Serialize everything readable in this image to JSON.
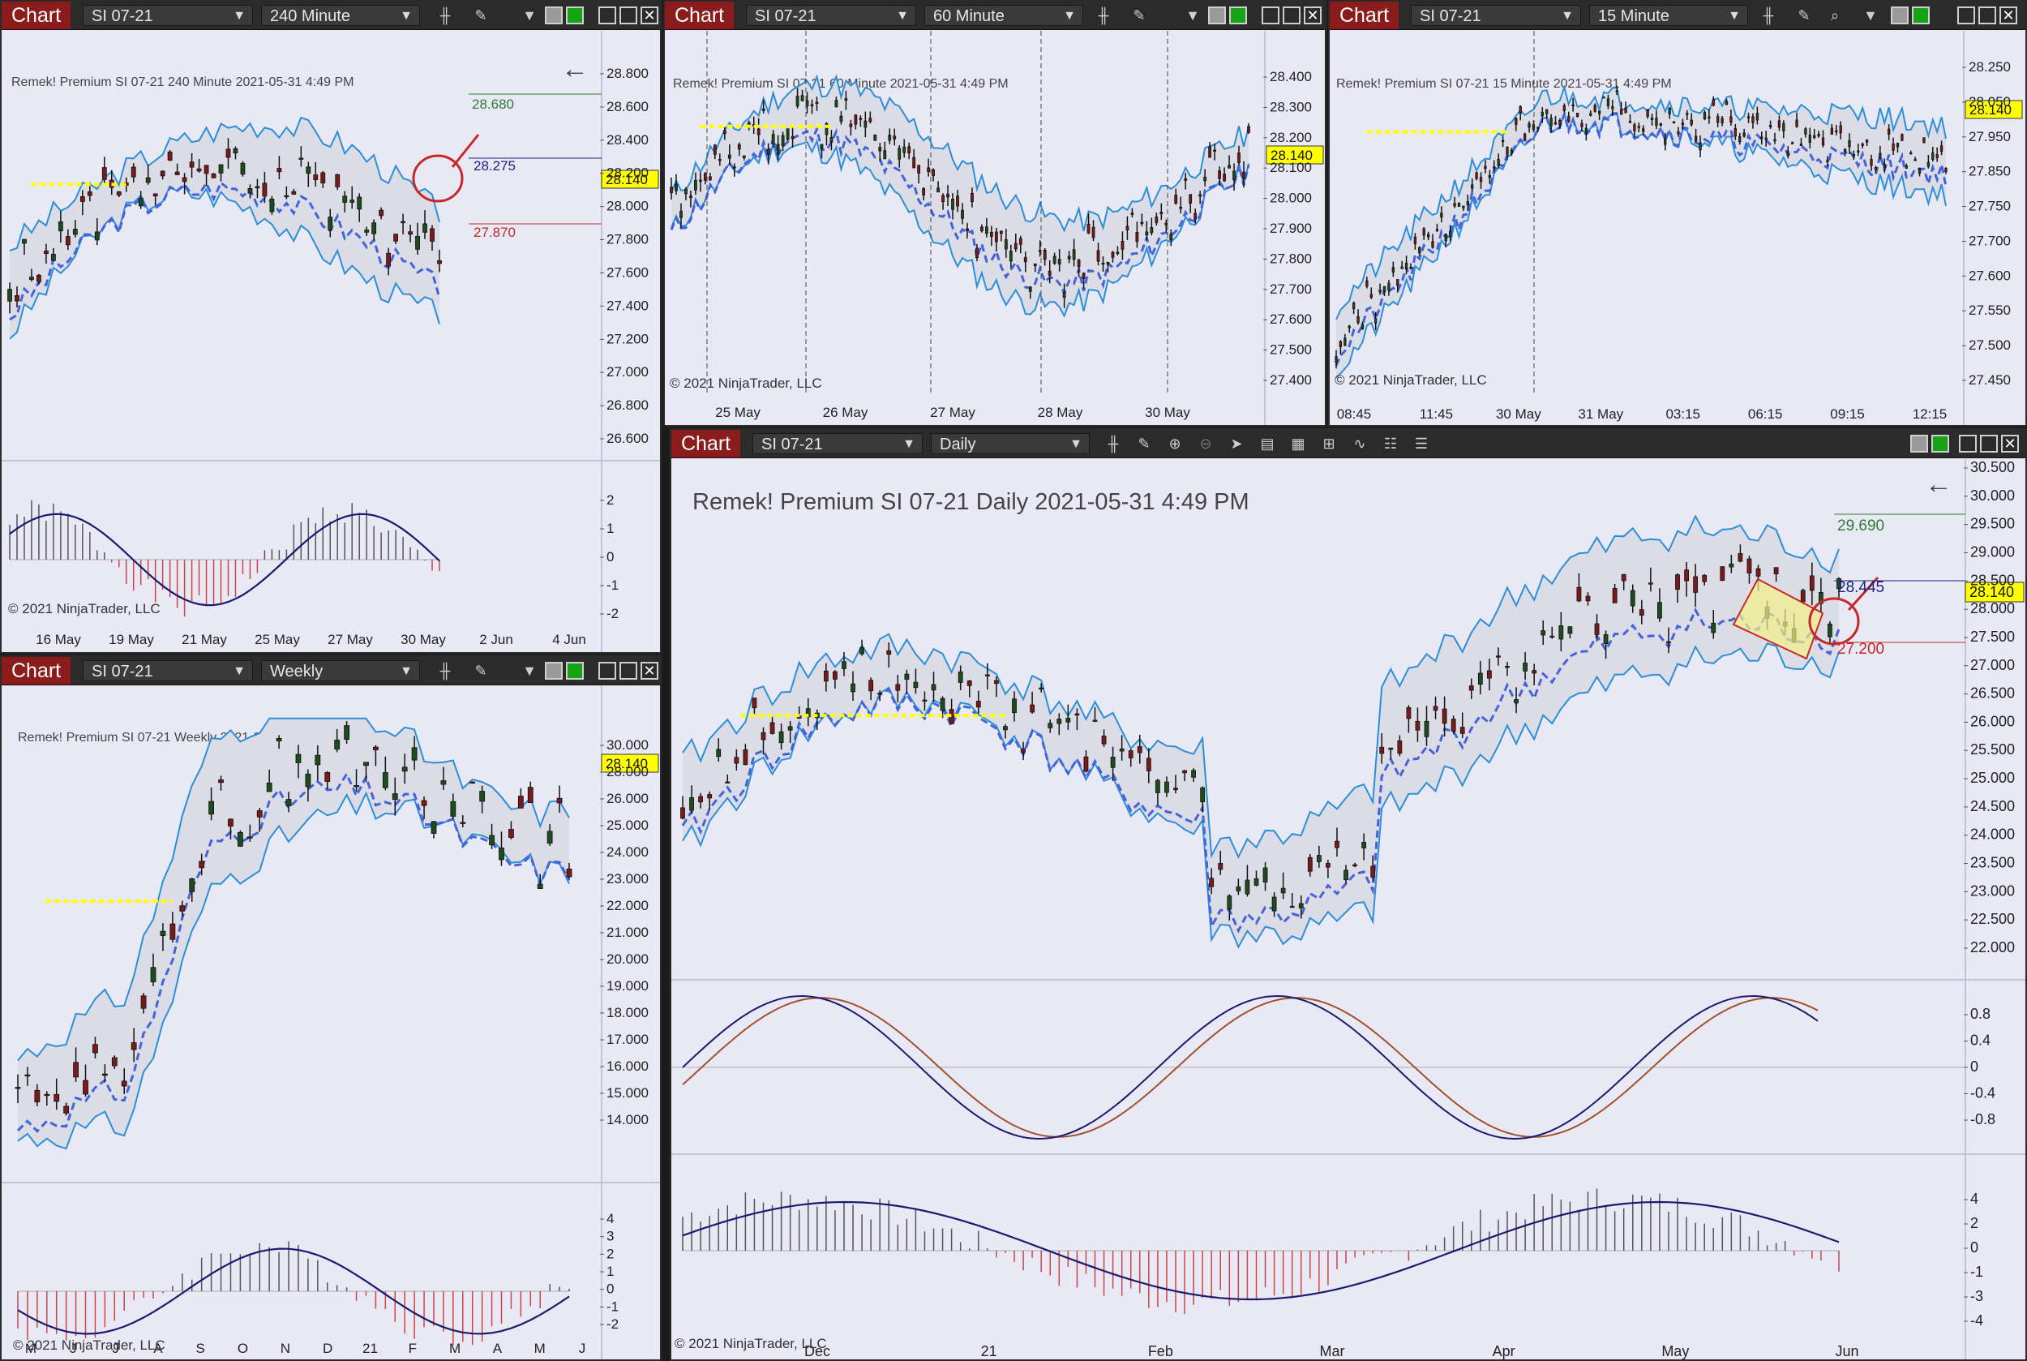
{
  "common": {
    "tab_label": "Chart",
    "instrument": "SI 07-21",
    "last_price": "28.140",
    "copyright": "© 2021 NinjaTrader, LLC",
    "header_prefix": "Remek!  Premium  SI 07-21",
    "timestamp": "2021-05-31 4:49 PM"
  },
  "colors": {
    "tab_bg": "#8a1c1c",
    "chart_bg": "#e9e9f6",
    "bull_candle": "#1d4d1d",
    "bear_candle": "#7a1a1a",
    "band": "#2b8fd8",
    "signal_yellow": "#ffff00",
    "signal_red": "#d01b1b",
    "signal_blue": "#4463d8",
    "price_tag": "#ffff00"
  },
  "win240": {
    "interval": "240 Minute",
    "header_interval": "240 Minute",
    "y_ticks": [
      "28.800",
      "28.600",
      "28.400",
      "28.200",
      "28.000",
      "27.800",
      "27.600",
      "27.400",
      "27.200",
      "27.000",
      "26.800",
      "26.600"
    ],
    "x_ticks": [
      "16 May",
      "19 May",
      "21 May",
      "25 May",
      "27 May",
      "30 May",
      "2 Jun",
      "4 Jun"
    ],
    "osc_ticks": [
      "2",
      "1",
      "0",
      "-1",
      "-2"
    ],
    "target_up": "28.680",
    "target_mid": "28.275",
    "target_down": "27.870",
    "back_icon": "arrow-left-icon"
  },
  "win60": {
    "interval": "60 Minute",
    "header_interval": "60 Minute",
    "y_ticks": [
      "28.400",
      "28.300",
      "28.200",
      "28.100",
      "28.000",
      "27.900",
      "27.800",
      "27.700",
      "27.600",
      "27.500",
      "27.400"
    ],
    "x_ticks": [
      "25 May",
      "26 May",
      "27 May",
      "28 May",
      "30 May"
    ]
  },
  "win15": {
    "interval": "15 Minute",
    "header_interval": "15 Minute",
    "y_ticks": [
      "28.250",
      "28.050",
      "27.950",
      "27.850",
      "27.750",
      "27.700",
      "27.600",
      "27.550",
      "27.500",
      "27.450"
    ],
    "x_ticks": [
      "08:45",
      "11:45",
      "30 May",
      "31 May",
      "03:15",
      "06:15",
      "09:15",
      "12:15"
    ]
  },
  "winWeekly": {
    "interval": "Weekly",
    "header_interval": "Weekly",
    "y_ticks": [
      "30.000",
      "28.000",
      "26.000",
      "25.000",
      "24.000",
      "23.000",
      "22.000",
      "21.000",
      "20.000",
      "19.000",
      "18.000",
      "17.000",
      "16.000",
      "15.000",
      "14.000"
    ],
    "x_ticks": [
      "M",
      "J",
      "J",
      "A",
      "S",
      "O",
      "N",
      "D",
      "21",
      "F",
      "M",
      "A",
      "M",
      "J"
    ],
    "osc_ticks": [
      "4",
      "3",
      "2",
      "1",
      "0",
      "-1",
      "-2"
    ]
  },
  "winDaily": {
    "interval": "Daily",
    "header_interval": "Daily",
    "y_ticks": [
      "30.500",
      "30.000",
      "29.500",
      "29.000",
      "28.500",
      "28.000",
      "27.500",
      "27.000",
      "26.500",
      "26.000",
      "25.500",
      "25.000",
      "24.500",
      "24.000",
      "23.500",
      "23.000",
      "22.500",
      "22.000"
    ],
    "x_ticks": [
      "Dec",
      "21",
      "Feb",
      "Mar",
      "Apr",
      "May",
      "Jun"
    ],
    "stoch_ticks": [
      "0.8",
      "0.4",
      "0",
      "-0.4",
      "-0.8"
    ],
    "osc_ticks": [
      "4",
      "2",
      "0",
      "-1",
      "-3",
      "-4"
    ],
    "target_up": "29.690",
    "target_mid": "28.445",
    "target_down": "27.200",
    "back_icon": "arrow-left-icon"
  }
}
